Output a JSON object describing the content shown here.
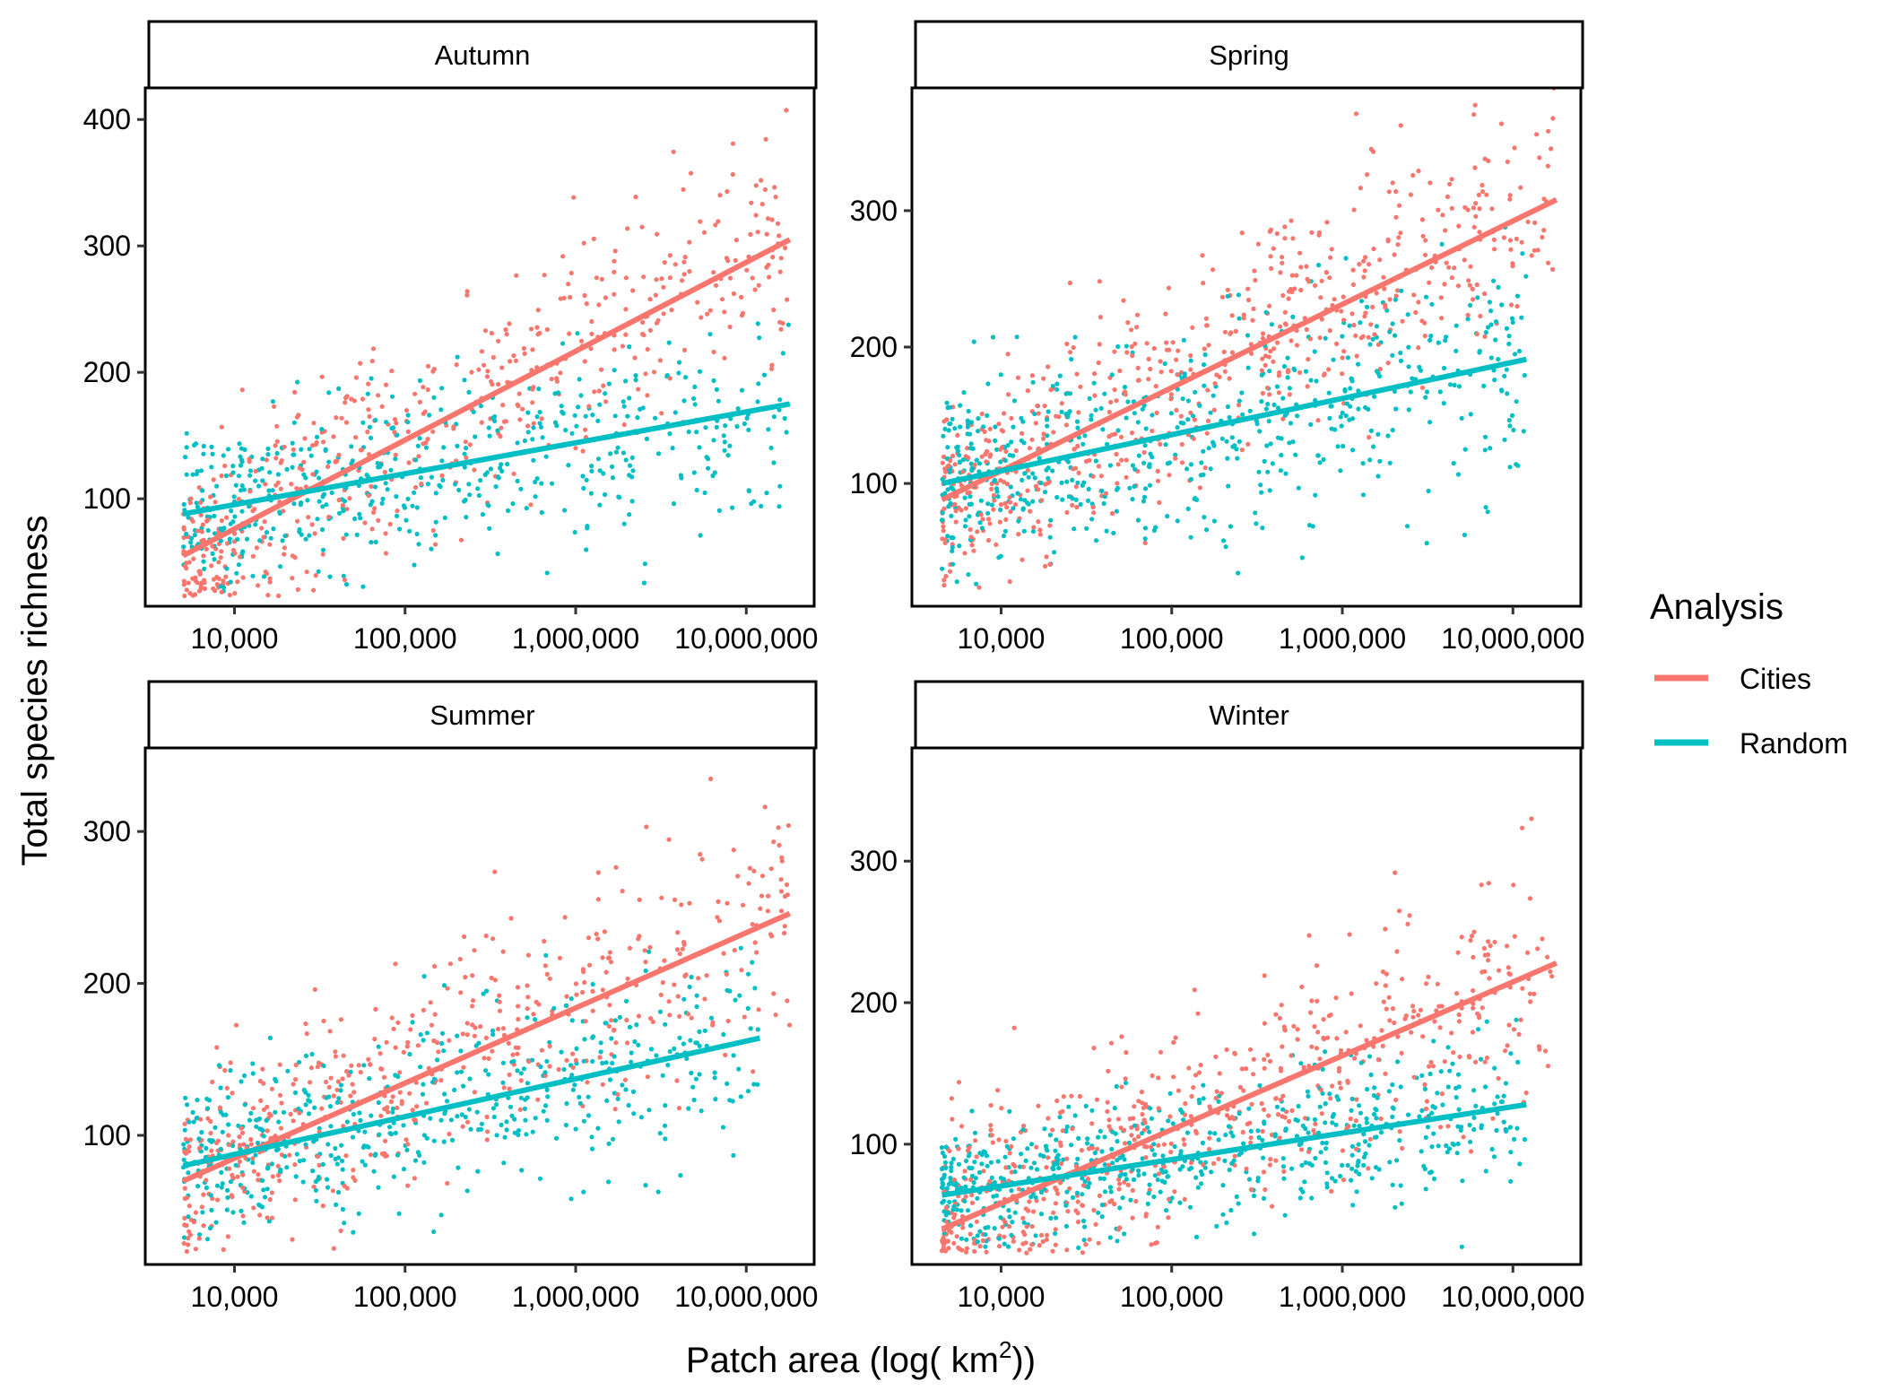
{
  "figure": {
    "xlabel": "Patch area (log( km",
    "xlabel_sup": "2",
    "xlabel_end": "))",
    "ylabel": "Total species richness"
  },
  "legend": {
    "title": "Analysis",
    "entries": [
      {
        "label": "Cities",
        "color": "#F8766D"
      },
      {
        "label": "Random",
        "color": "#00BFC4"
      }
    ]
  },
  "chart_data": [
    {
      "type": "scatter",
      "panel": "Autumn",
      "x_scale": "log10",
      "xlim": [
        3000,
        25000000
      ],
      "ylim": [
        15,
        425
      ],
      "x_ticks": [
        10000,
        100000,
        1000000,
        10000000
      ],
      "x_tick_labels": [
        "10,000",
        "100,000",
        "1,000,000",
        "10,000,000"
      ],
      "y_ticks": [
        100,
        200,
        300,
        400
      ],
      "y_tick_labels": [
        "100",
        "200",
        "300",
        "400"
      ],
      "series": [
        {
          "name": "Cities",
          "color": "#F8766D",
          "trend": {
            "x": [
              5000,
              18000000
            ],
            "y": [
              55,
              305
            ]
          },
          "cloud": {
            "n": 520,
            "x_range": [
              5000,
              18000000
            ],
            "y_sd": 42
          }
        },
        {
          "name": "Random",
          "color": "#00BFC4",
          "trend": {
            "x": [
              5000,
              18000000
            ],
            "y": [
              88,
              175
            ]
          },
          "cloud": {
            "n": 520,
            "x_range": [
              5000,
              18000000
            ],
            "y_sd": 38
          }
        }
      ]
    },
    {
      "type": "scatter",
      "panel": "Spring",
      "x_scale": "log10",
      "xlim": [
        3000,
        25000000
      ],
      "ylim": [
        10,
        390
      ],
      "x_ticks": [
        10000,
        100000,
        1000000,
        10000000
      ],
      "x_tick_labels": [
        "10,000",
        "100,000",
        "1,000,000",
        "10,000,000"
      ],
      "y_ticks": [
        100,
        200,
        300
      ],
      "y_tick_labels": [
        "100",
        "200",
        "300"
      ],
      "series": [
        {
          "name": "Cities",
          "color": "#F8766D",
          "trend": {
            "x": [
              4500,
              18000000
            ],
            "y": [
              88,
              308
            ]
          },
          "cloud": {
            "n": 620,
            "x_range": [
              4500,
              18000000
            ],
            "y_sd": 40
          }
        },
        {
          "name": "Random",
          "color": "#00BFC4",
          "trend": {
            "x": [
              4500,
              12000000
            ],
            "y": [
              100,
              191
            ]
          },
          "cloud": {
            "n": 620,
            "x_range": [
              4500,
              12000000
            ],
            "y_sd": 38
          }
        }
      ]
    },
    {
      "type": "scatter",
      "panel": "Summer",
      "x_scale": "log10",
      "xlim": [
        3000,
        25000000
      ],
      "ylim": [
        15,
        355
      ],
      "x_ticks": [
        10000,
        100000,
        1000000,
        10000000
      ],
      "x_tick_labels": [
        "10,000",
        "100,000",
        "1,000,000",
        "10,000,000"
      ],
      "y_ticks": [
        100,
        200,
        300
      ],
      "y_tick_labels": [
        "100",
        "200",
        "300"
      ],
      "series": [
        {
          "name": "Cities",
          "color": "#F8766D",
          "trend": {
            "x": [
              5000,
              18000000
            ],
            "y": [
              70,
              246
            ]
          },
          "cloud": {
            "n": 520,
            "x_range": [
              5000,
              18000000
            ],
            "y_sd": 38
          }
        },
        {
          "name": "Random",
          "color": "#00BFC4",
          "trend": {
            "x": [
              5000,
              12000000
            ],
            "y": [
              80,
              164
            ]
          },
          "cloud": {
            "n": 520,
            "x_range": [
              5000,
              12000000
            ],
            "y_sd": 30
          }
        }
      ]
    },
    {
      "type": "scatter",
      "panel": "Winter",
      "x_scale": "log10",
      "xlim": [
        3000,
        25000000
      ],
      "ylim": [
        15,
        380
      ],
      "x_ticks": [
        10000,
        100000,
        1000000,
        10000000
      ],
      "x_tick_labels": [
        "10,000",
        "100,000",
        "1,000,000",
        "10,000,000"
      ],
      "y_ticks": [
        100,
        200,
        300
      ],
      "y_tick_labels": [
        "100",
        "200",
        "300"
      ],
      "series": [
        {
          "name": "Cities",
          "color": "#F8766D",
          "trend": {
            "x": [
              4500,
              18000000
            ],
            "y": [
              40,
              228
            ]
          },
          "cloud": {
            "n": 620,
            "x_range": [
              4500,
              18000000
            ],
            "y_sd": 38
          }
        },
        {
          "name": "Random",
          "color": "#00BFC4",
          "trend": {
            "x": [
              4500,
              12000000
            ],
            "y": [
              64,
              128
            ]
          },
          "cloud": {
            "n": 620,
            "x_range": [
              4500,
              12000000
            ],
            "y_sd": 26
          }
        }
      ]
    }
  ]
}
